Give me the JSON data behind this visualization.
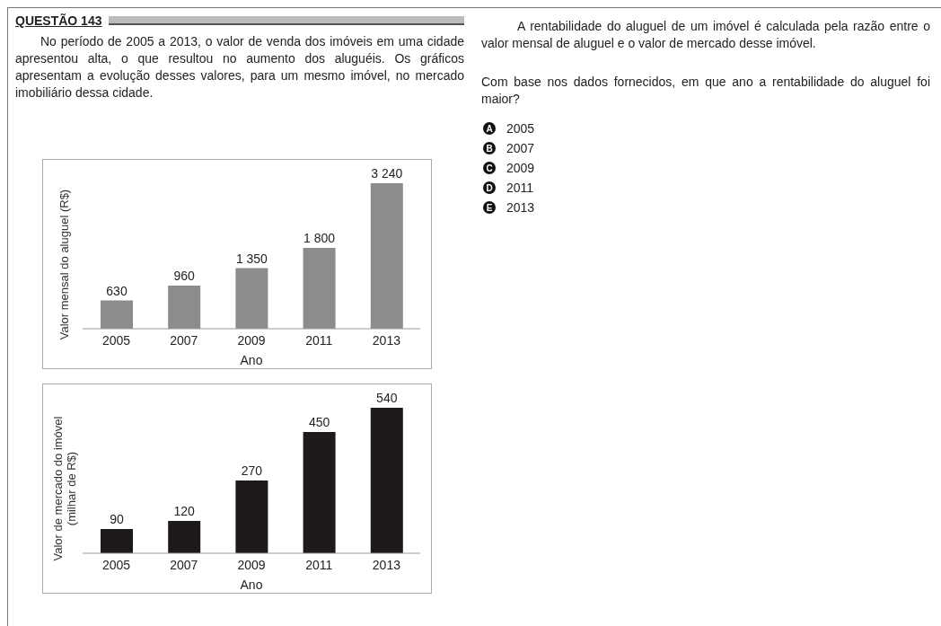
{
  "chart_data": [
    {
      "type": "bar",
      "title": "QUESTÃO 143",
      "annotations": [
        "No período de 2005 a 2013, o valor de venda dos imóveis em uma cidade apresentou alta, o que resultou no aumento dos aluguéis. Os gráficos apresentam a evolução desses valores, para um mesmo imóvel, no mercado imobiliário dessa cidade.",
        "A rentabilidade do aluguel de um imóvel é calculada pela razão entre o valor mensal de aluguel e o valor de mercado desse imóvel.",
        "Com base nos dados fornecidos, em que ano a rentabilidade do aluguel foi maior?",
        "A 2005",
        "B 2007",
        "C 2009",
        "D 2011",
        "E 2013"
      ],
      "categories": [
        "2005",
        "2007",
        "2009",
        "2011",
        "2013"
      ],
      "values": [
        630,
        960,
        1350,
        1800,
        3240
      ],
      "value_labels": [
        "630",
        "960",
        "1 350",
        "1 800",
        "3 240"
      ],
      "color": "#8c8c8c",
      "xlabel": "Ano",
      "ylabel": "Valor mensal do aluguel (R$)"
    },
    {
      "type": "bar",
      "categories": [
        "2005",
        "2007",
        "2009",
        "2011",
        "2013"
      ],
      "values": [
        90,
        120,
        270,
        450,
        540
      ],
      "value_labels": [
        "90",
        "120",
        "270",
        "450",
        "540"
      ],
      "color": "#1e1a1a",
      "xlabel": "Ano",
      "ylabel": "Valor de mercado do imóvel\n(milhar de R$)"
    }
  ]
}
